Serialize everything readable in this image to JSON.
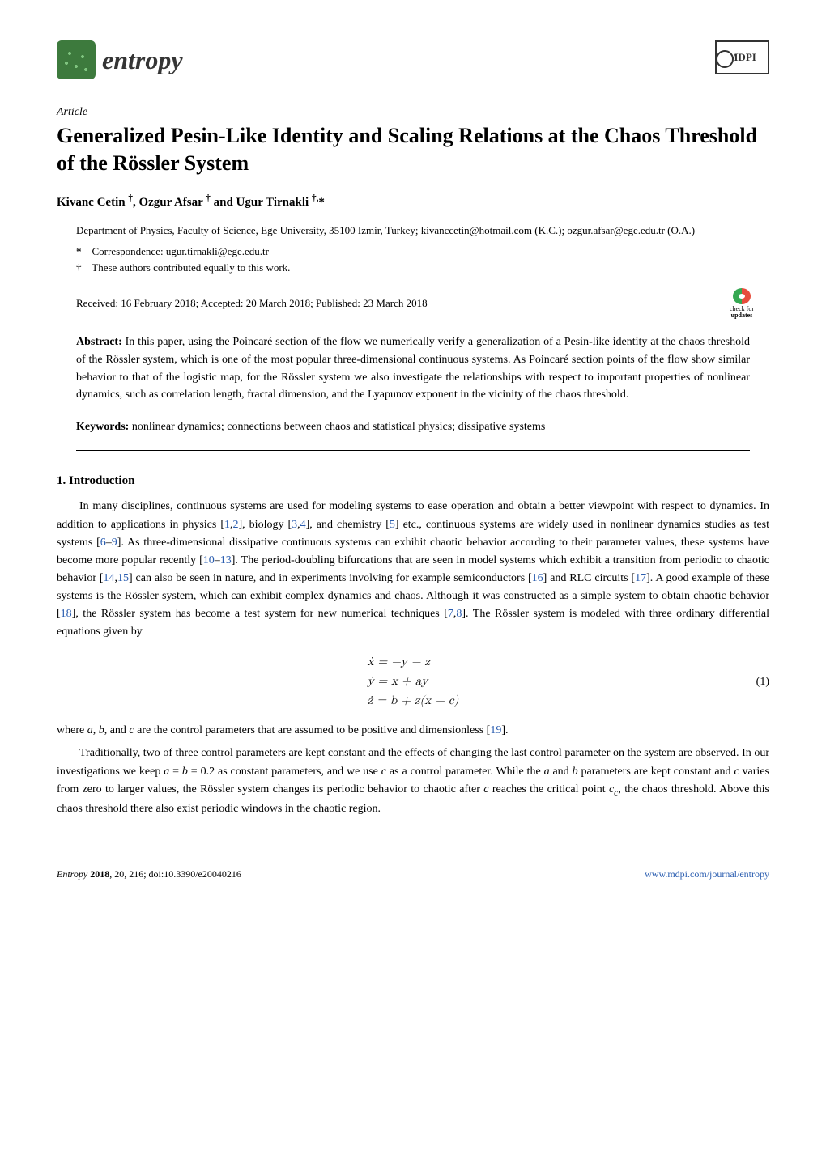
{
  "header": {
    "journal_name": "entropy",
    "publisher_logo": "MDPI"
  },
  "article": {
    "type": "Article",
    "title": "Generalized Pesin-Like Identity and Scaling Relations at the Chaos Threshold of the Rössler System",
    "authors_html": "Kivanc Cetin <sup>†</sup>, Ozgur Afsar <sup>†</sup> and Ugur Tirnakli <sup>†,</sup>*",
    "affiliation": "Department of Physics, Faculty of Science, Ege University, 35100 Izmir, Turkey; kivanccetin@hotmail.com (K.C.); ozgur.afsar@ege.edu.tr (O.A.)",
    "corr_marker": "*",
    "corr_text": "Correspondence: ugur.tirnakli@ege.edu.tr",
    "contrib_marker": "†",
    "contrib_text": "These authors contributed equally to this work.",
    "received": "Received: 16 February 2018; Accepted: 20 March 2018; Published: 23 March 2018",
    "check_updates_label1": "check for",
    "check_updates_label2": "updates"
  },
  "abstract": {
    "label": "Abstract:",
    "text": "In this paper, using the Poincaré section of the flow we numerically verify a generalization of a Pesin-like identity at the chaos threshold of the Rössler system, which is one of the most popular three-dimensional continuous systems. As Poincaré section points of the flow show similar behavior to that of the logistic map, for the Rössler system we also investigate the relationships with respect to important properties of nonlinear dynamics, such as correlation length, fractal dimension, and the Lyapunov exponent in the vicinity of the chaos threshold."
  },
  "keywords": {
    "label": "Keywords:",
    "text": "nonlinear dynamics; connections between chaos and statistical physics; dissipative systems"
  },
  "section1": {
    "heading": "1. Introduction",
    "para1_pre": "In many disciplines, continuous systems are used for modeling systems to ease operation and obtain a better viewpoint with respect to dynamics. In addition to applications in physics [",
    "ref1": "1",
    "ref2": "2",
    "para1_mid1": "], biology [",
    "ref3": "3",
    "ref4": "4",
    "para1_mid2": "], and chemistry [",
    "ref5": "5",
    "para1_mid3": "] etc., continuous systems are widely used in nonlinear dynamics studies as test systems [",
    "ref6": "6",
    "ref9": "9",
    "para1_mid4": "]. As three-dimensional dissipative continuous systems can exhibit chaotic behavior according to their parameter values, these systems have become more popular recently [",
    "ref10": "10",
    "ref13": "13",
    "para1_mid5": "]. The period-doubling bifurcations that are seen in model systems which exhibit a transition from periodic to chaotic behavior [",
    "ref14": "14",
    "ref15": "15",
    "para1_mid6": "] can also be seen in nature, and in experiments involving for example semiconductors [",
    "ref16": "16",
    "para1_mid7": "] and RLC circuits [",
    "ref17": "17",
    "para1_mid8": "]. A good example of these systems is the Rössler system, which can exhibit complex dynamics and chaos. Although it was constructed as a simple system to obtain chaotic behavior [",
    "ref18": "18",
    "para1_mid9": "], the Rössler system has become a test system for new numerical techniques [",
    "ref7": "7",
    "ref8": "8",
    "para1_end": "]. The Rössler system is modeled with three ordinary differential equations given by",
    "eq1_line1": "ẋ = −y − z",
    "eq1_line2": "ẏ = x + ay",
    "eq1_line3": "ż = b + z(x − c)",
    "eq1_num": "(1)",
    "para2_pre": "where ",
    "para2_vars": "a, b, and c",
    "para2_mid": " are the control parameters that are assumed to be positive and dimensionless [",
    "ref19": "19",
    "para2_end": "].",
    "para3": "Traditionally, two of three control parameters are kept constant and the effects of changing the last control parameter on the system are observed. In our investigations we keep a = b = 0.2 as constant parameters, and we use c as a control parameter. While the a and b parameters are kept constant and c varies from zero to larger values, the Rössler system changes its periodic behavior to chaotic after c reaches the critical point cₐ, the chaos threshold. Above this chaos threshold there also exist periodic windows in the chaotic region."
  },
  "footer": {
    "left_italic": "Entropy ",
    "left_bold": "2018",
    "left_rest": ", 20, 216; doi:10.3390/e20040216",
    "right": "www.mdpi.com/journal/entropy"
  },
  "colors": {
    "link": "#2a5db0",
    "entropy_green": "#3d7a3d",
    "text": "#000000",
    "bg": "#ffffff"
  }
}
